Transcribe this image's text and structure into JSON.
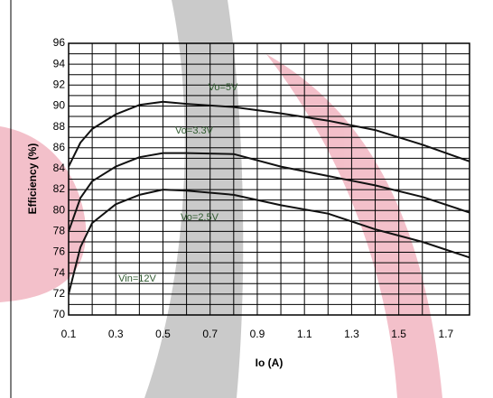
{
  "chart_data": {
    "type": "line",
    "y_label": "Efficiency (%)",
    "x_label": "Io (A)",
    "annotation": "Vin=12V",
    "x": [
      0.1,
      0.15,
      0.2,
      0.3,
      0.4,
      0.5,
      0.6,
      0.8,
      1.0,
      1.2,
      1.4,
      1.6,
      1.8
    ],
    "series": [
      {
        "name": "Vo=5V",
        "color": "#111111",
        "values": [
          84.2,
          86.5,
          87.8,
          89.2,
          90.1,
          90.4,
          90.2,
          89.9,
          89.3,
          88.6,
          87.7,
          86.3,
          84.7
        ]
      },
      {
        "name": "Vo=3.3V",
        "color": "#111111",
        "values": [
          78,
          81.2,
          82.8,
          84.2,
          85.1,
          85.5,
          85.5,
          85.4,
          84.2,
          83.3,
          82.4,
          81.3,
          79.8
        ]
      },
      {
        "name": "Vo=2.5V",
        "color": "#111111",
        "values": [
          72,
          76.5,
          78.8,
          80.6,
          81.5,
          82,
          81.9,
          81.5,
          80.5,
          79.7,
          78.2,
          77,
          75.5
        ]
      }
    ],
    "xlim": [
      0.1,
      1.8
    ],
    "ylim": [
      70,
      96
    ],
    "xticks": [
      0.1,
      0.3,
      0.5,
      0.7,
      0.9,
      1.1,
      1.3,
      1.5,
      1.7
    ],
    "yticks": [
      70,
      72,
      74,
      76,
      78,
      80,
      82,
      84,
      86,
      88,
      90,
      92,
      94,
      96
    ],
    "grid": true,
    "minor_grid": true,
    "label_color": "#2f5a2f"
  }
}
